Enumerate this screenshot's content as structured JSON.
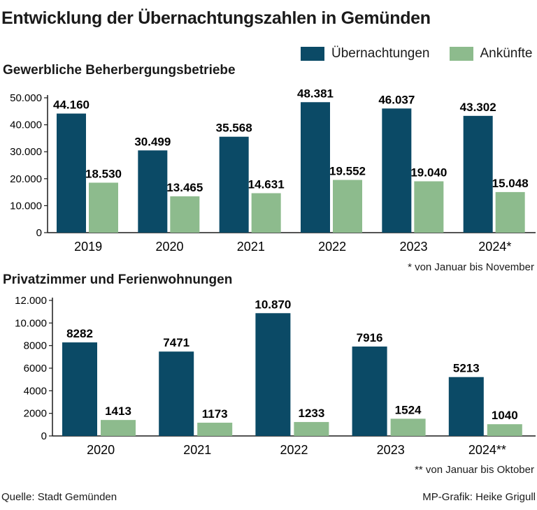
{
  "title": "Entwicklung der Übernachtungszahlen in Gemünden",
  "legend": {
    "items": [
      {
        "label": "Übernachtungen",
        "color": "#0b4a66"
      },
      {
        "label": "Ankünfte",
        "color": "#8dbb8d"
      }
    ]
  },
  "source": "Quelle: Stadt Gemünden",
  "credit": "MP-Grafik: Heike Grigull",
  "chart_data": [
    {
      "type": "bar",
      "title": "Gewerbliche Beherbergungsbetriebe",
      "categories": [
        "2019",
        "2020",
        "2021",
        "2022",
        "2023",
        "2024*"
      ],
      "series": [
        {
          "name": "Übernachtungen",
          "values": [
            44160,
            30499,
            35568,
            48381,
            46037,
            43302
          ],
          "labels": [
            "44.160",
            "30.499",
            "35.568",
            "48.381",
            "46.037",
            "43.302"
          ]
        },
        {
          "name": "Ankünfte",
          "values": [
            18530,
            13465,
            14631,
            19552,
            19040,
            15048
          ],
          "labels": [
            "18.530",
            "13.465",
            "14.631",
            "19.552",
            "19.040",
            "15.048"
          ]
        }
      ],
      "ylim": [
        0,
        50000
      ],
      "yticks": [
        0,
        10000,
        20000,
        30000,
        40000,
        50000
      ],
      "yticklabels": [
        "0",
        "10.000",
        "20.000",
        "30.000",
        "40.000",
        "50.000"
      ],
      "grid": false,
      "footnote": "* von Januar bis November"
    },
    {
      "type": "bar",
      "title": "Privatzimmer und Ferienwohnungen",
      "categories": [
        "2020",
        "2021",
        "2022",
        "2023",
        "2024**"
      ],
      "series": [
        {
          "name": "Übernachtungen",
          "values": [
            8282,
            7471,
            10870,
            7916,
            5213
          ],
          "labels": [
            "8282",
            "7471",
            "10.870",
            "7916",
            "5213"
          ]
        },
        {
          "name": "Ankünfte",
          "values": [
            1413,
            1173,
            1233,
            1524,
            1040
          ],
          "labels": [
            "1413",
            "1173",
            "1233",
            "1524",
            "1040"
          ]
        }
      ],
      "ylim": [
        0,
        12000
      ],
      "yticks": [
        0,
        2000,
        4000,
        6000,
        8000,
        10000,
        12000
      ],
      "yticklabels": [
        "0",
        "2000",
        "4000",
        "6000",
        "8000",
        "10.000",
        "12.000"
      ],
      "grid": false,
      "footnote": "** von Januar bis Oktober"
    }
  ]
}
